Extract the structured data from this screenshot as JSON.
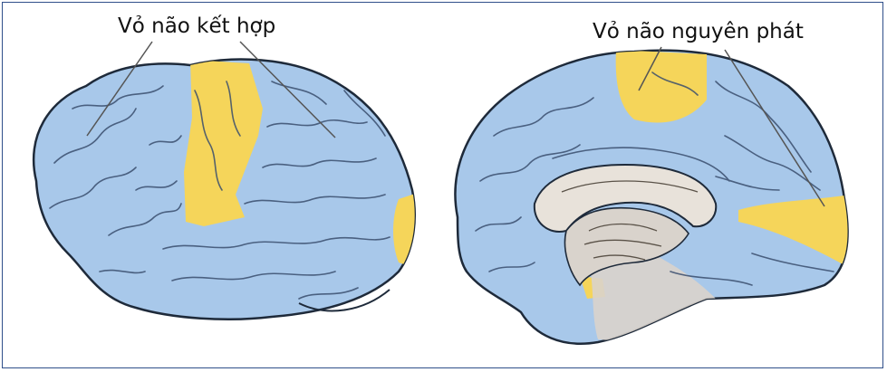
{
  "labels": {
    "association_cortex": "Vỏ não kết hợp",
    "primary_cortex": "Vỏ não nguyên phát"
  },
  "colors": {
    "cortex_blue": "#a8c8ea",
    "cortex_blue_dark": "#7fa8d6",
    "highlight_yellow": "#f5d55a",
    "outline": "#1e2a3a",
    "inner_gray": "#d9d3cc",
    "frame": "#2f4f8a"
  }
}
